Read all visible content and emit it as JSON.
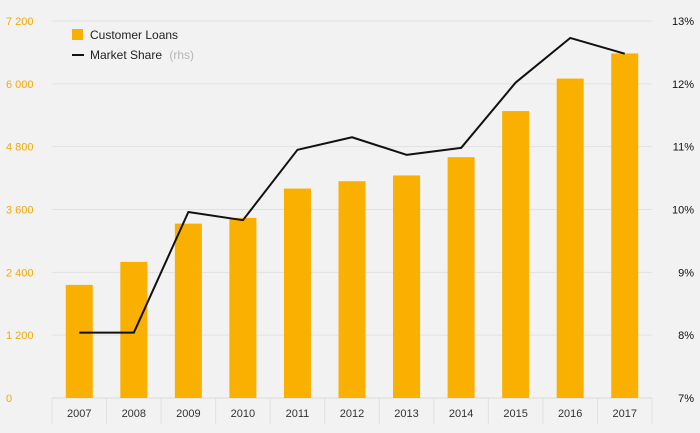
{
  "colors": {
    "background": "#f2f2f2",
    "bar": "#f9b000",
    "line": "#111111",
    "grid": "#e1e1e1",
    "left_axis_text": "#f5a800",
    "right_axis_text": "#111111"
  },
  "legend": {
    "loans_label": "Customer Loans",
    "share_label": "Market Share",
    "share_note": "(rhs)"
  },
  "chart_data": {
    "type": "bar",
    "categories": [
      "2007",
      "2008",
      "2009",
      "2010",
      "2011",
      "2012",
      "2013",
      "2014",
      "2015",
      "2016",
      "2017"
    ],
    "series": [
      {
        "name": "Customer Loans",
        "type": "bar",
        "axis": "left",
        "values": [
          2160,
          2600,
          3330,
          3440,
          4000,
          4140,
          4250,
          4600,
          5480,
          6100,
          6580
        ]
      },
      {
        "name": "Market Share",
        "type": "line",
        "axis": "right",
        "values": [
          8.04,
          8.04,
          9.96,
          9.83,
          10.95,
          11.15,
          10.87,
          10.98,
          12.02,
          12.73,
          12.48
        ]
      }
    ],
    "y_left": {
      "min": 0,
      "max": 7200,
      "ticks": [
        0,
        1200,
        2400,
        3600,
        4800,
        6000,
        7200
      ],
      "tick_labels": [
        "0",
        "1 200",
        "2 400",
        "3 600",
        "4 800",
        "6 000",
        "7 200"
      ]
    },
    "y_right": {
      "min": 7,
      "max": 13,
      "ticks": [
        7,
        8,
        9,
        10,
        11,
        12,
        13
      ],
      "tick_labels": [
        "7%",
        "8%",
        "9%",
        "10%",
        "11%",
        "12%",
        "13%"
      ]
    },
    "grid": true,
    "legend_position": "top-left",
    "title": "",
    "xlabel": "",
    "ylabel": ""
  }
}
